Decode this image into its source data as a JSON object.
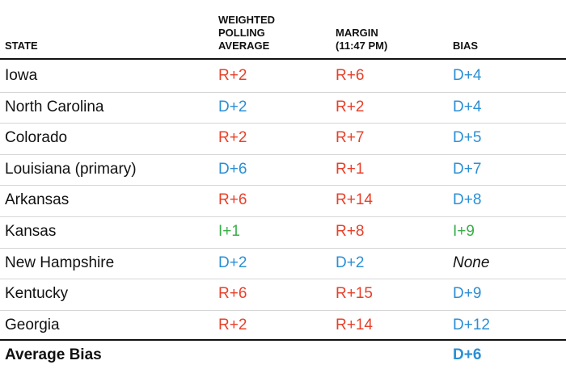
{
  "table": {
    "header": [
      "STATE",
      "WEIGHTED\nPOLLING\nAVERAGE",
      "MARGIN\n(11:47 PM)",
      "BIAS"
    ],
    "rows": [
      [
        "Iowa",
        "R+2",
        "R+6",
        "D+4"
      ],
      [
        "North Carolina",
        "D+2",
        "R+2",
        "D+4"
      ],
      [
        "Colorado",
        "R+2",
        "R+7",
        "D+5"
      ],
      [
        "Louisiana (primary)",
        "D+6",
        "R+1",
        "D+7"
      ],
      [
        "Arkansas",
        "R+6",
        "R+14",
        "D+8"
      ],
      [
        "Kansas",
        "I+1",
        "R+8",
        "I+9"
      ],
      [
        "New Hampshire",
        "D+2",
        "D+2",
        "None"
      ],
      [
        "Kentucky",
        "R+6",
        "R+15",
        "D+9"
      ],
      [
        "Georgia",
        "R+2",
        "R+14",
        "D+12"
      ]
    ],
    "footer": [
      "Average Bias",
      "D+6"
    ]
  }
}
